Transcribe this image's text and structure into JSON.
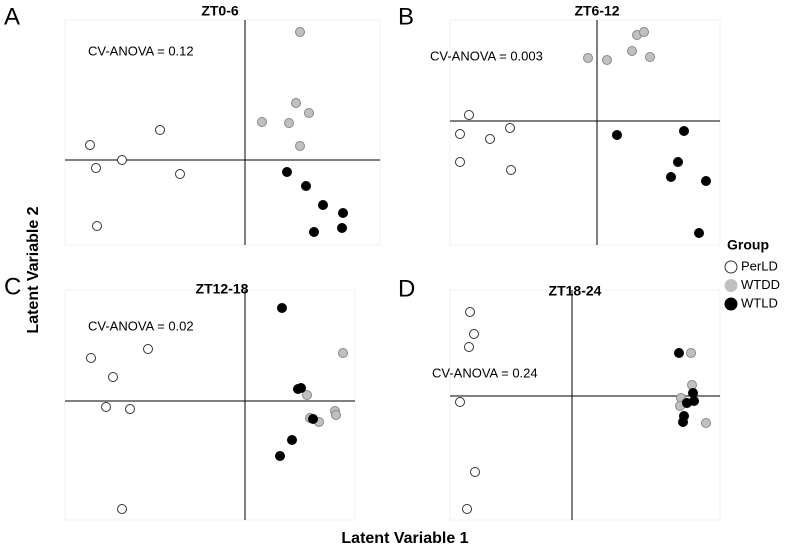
{
  "x_label": "Latent Variable 1",
  "y_label": "Latent Variable 2",
  "legend_title": "Group",
  "chart_data": [
    {
      "type": "scatter",
      "panel": "A",
      "title": "ZT0-6",
      "annotation": "CV-ANOVA = 0.12",
      "xlim": [
        -1.8,
        1.35
      ],
      "ylim": [
        -0.85,
        1.4
      ],
      "series": [
        {
          "name": "PerLD",
          "color": "#ffffff",
          "x": [
            -1.55,
            -1.49,
            -1.23,
            -0.85,
            -0.65,
            -1.48
          ],
          "values": [
            0.15,
            -0.08,
            0,
            0.3,
            -0.14,
            -0.66
          ]
        },
        {
          "name": "WTDD",
          "color": "#c0c0c0",
          "x": [
            0.55,
            0.51,
            0.64,
            0.17,
            0.44,
            0.55
          ],
          "values": [
            1.28,
            0.57,
            0.47,
            0.38,
            0.37,
            0.14
          ]
        },
        {
          "name": "WTLD",
          "color": "#000000",
          "x": [
            0.42,
            0.61,
            0.78,
            0.98,
            0.69,
            0.97
          ],
          "values": [
            -0.12,
            -0.26,
            -0.45,
            -0.53,
            -0.72,
            -0.68
          ]
        }
      ]
    },
    {
      "type": "scatter",
      "panel": "B",
      "title": "ZT6-12",
      "annotation": "CV-ANOVA = 0.003",
      "xlim": [
        -1.47,
        1.23
      ],
      "ylim": [
        -1.24,
        1.01
      ],
      "series": [
        {
          "name": "PerLD",
          "color": "#ffffff",
          "x": [
            -1.28,
            -1.37,
            -1.07,
            -0.87,
            -1.37,
            -0.86
          ],
          "values": [
            0.06,
            -0.13,
            -0.18,
            -0.07,
            -0.41,
            -0.49
          ]
        },
        {
          "name": "WTDD",
          "color": "#c0c0c0",
          "x": [
            -0.09,
            0.1,
            0.4,
            0.47,
            0.35,
            0.53
          ],
          "values": [
            0.63,
            0.61,
            0.86,
            0.89,
            0.7,
            0.64
          ]
        },
        {
          "name": "WTLD",
          "color": "#000000",
          "x": [
            0.2,
            0.87,
            0.81,
            0.74,
            1.09,
            1.02
          ],
          "values": [
            -0.14,
            -0.1,
            -0.41,
            -0.56,
            -0.6,
            -1.12
          ]
        }
      ]
    },
    {
      "type": "scatter",
      "panel": "C",
      "title": "ZT12-18",
      "annotation": "CV-ANOVA = 0.02",
      "xlim": [
        -1.8,
        1.1
      ],
      "ylim": [
        -1.19,
        1.11
      ],
      "series": [
        {
          "name": "PerLD",
          "color": "#ffffff",
          "x": [
            -1.54,
            -1.32,
            -0.97,
            -1.39,
            -1.15,
            -1.23
          ],
          "values": [
            0.43,
            0.24,
            0.52,
            -0.06,
            -0.08,
            -1.08
          ]
        },
        {
          "name": "WTDD",
          "color": "#c0c0c0",
          "x": [
            0.98,
            0.62,
            0.65,
            0.74,
            0.9,
            0.91
          ],
          "values": [
            0.48,
            0.06,
            -0.17,
            -0.21,
            -0.1,
            -0.14
          ]
        },
        {
          "name": "WTLD",
          "color": "#000000",
          "x": [
            0.37,
            0.53,
            0.56,
            0.68,
            0.47,
            0.35
          ],
          "values": [
            0.93,
            0.12,
            0.13,
            -0.18,
            -0.39,
            -0.55
          ]
        }
      ]
    },
    {
      "type": "scatter",
      "panel": "D",
      "title": "ZT18-24",
      "annotation": "CV-ANOVA = 0.24",
      "xlim": [
        -1.22,
        1.48
      ],
      "ylim": [
        -1.24,
        1.06
      ],
      "series": [
        {
          "name": "PerLD",
          "color": "#ffffff",
          "x": [
            -1.02,
            -0.98,
            -1.03,
            -1.12,
            -0.97,
            -1.05
          ],
          "values": [
            0.84,
            0.62,
            0.49,
            -0.06,
            -0.76,
            -1.13
          ]
        },
        {
          "name": "WTDD",
          "color": "#c0c0c0",
          "x": [
            1.19,
            1.2,
            1.09,
            1.14,
            1.08,
            1.34
          ],
          "values": [
            0.43,
            0.11,
            -0.02,
            -0.07,
            -0.1,
            -0.27
          ]
        },
        {
          "name": "WTLD",
          "color": "#000000",
          "x": [
            1.07,
            1.21,
            1.22,
            1.12,
            1.11,
            1.15
          ],
          "values": [
            0.43,
            0.03,
            -0.05,
            -0.2,
            -0.26,
            -0.07
          ]
        }
      ]
    }
  ]
}
